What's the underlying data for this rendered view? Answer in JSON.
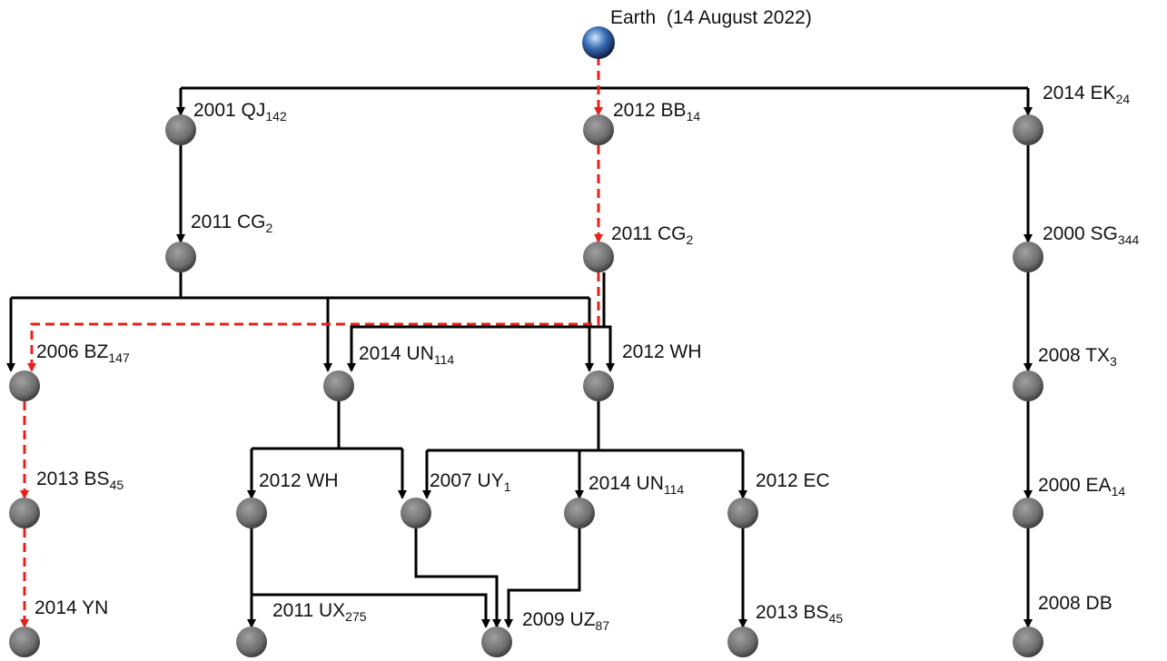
{
  "nodes": [
    {
      "label": "Earth  (14 August 2022)"
    },
    {
      "label": "2001 QJ",
      "sub": "142"
    },
    {
      "label": "2012 BB",
      "sub": "14"
    },
    {
      "label": "2014 EK",
      "sub": "24"
    },
    {
      "label": "2011 CG",
      "sub": "2"
    },
    {
      "label": "2011 CG",
      "sub": "2"
    },
    {
      "label": "2000 SG",
      "sub": "344"
    },
    {
      "label": "2006 BZ",
      "sub": "147"
    },
    {
      "label": "2014 UN",
      "sub": "114"
    },
    {
      "label": "2012 WH"
    },
    {
      "label": "2008 TX",
      "sub": "3"
    },
    {
      "label": "2013 BS",
      "sub": "45"
    },
    {
      "label": "2012 WH"
    },
    {
      "label": "2007 UY",
      "sub": "1"
    },
    {
      "label": "2014 UN",
      "sub": "114"
    },
    {
      "label": "2012 EC"
    },
    {
      "label": "2000 EA",
      "sub": "14"
    },
    {
      "label": "2014 YN"
    },
    {
      "label": "2011 UX",
      "sub": "275"
    },
    {
      "label": "2009 UZ",
      "sub": "87"
    },
    {
      "label": "2013 BS",
      "sub": "45"
    },
    {
      "label": "2008 DB"
    }
  ]
}
